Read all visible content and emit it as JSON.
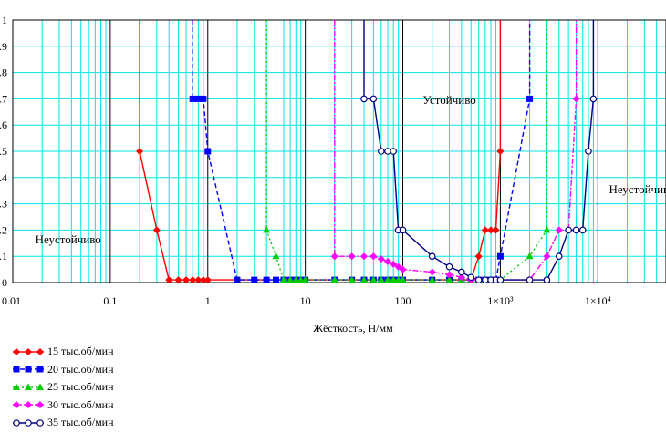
{
  "chart_data": {
    "type": "line",
    "xscale": "log",
    "xlim": [
      0.01,
      50000
    ],
    "ylim": [
      0,
      1
    ],
    "x_tick_labels": [
      "0.01",
      "0.1",
      "1",
      "10",
      "100",
      "1×10³",
      "1×10⁴"
    ],
    "y_tick_labels": [
      "0",
      ".1",
      ".2",
      ".3",
      ".4",
      ".5",
      ".6",
      ".7",
      ".8",
      ".9",
      "1"
    ],
    "xlabel": "Жёсткость, Н/мм",
    "ylabel": "",
    "annotations": [
      {
        "text": "Неустойчиво",
        "x": 0.017,
        "y": 0.15
      },
      {
        "text": "Устойчиво",
        "x": 160,
        "y": 0.68
      },
      {
        "text": "Неустойчиво",
        "x": 13000,
        "y": 0.34
      }
    ],
    "grid": true,
    "legend_position": "bottom-left",
    "series": [
      {
        "name": "15 тыс.об/мин",
        "color": "#ff0000",
        "dash": "",
        "marker": "diamond",
        "x": [
          0.2,
          0.2,
          0.3,
          0.4,
          0.5,
          0.6,
          0.7,
          0.8,
          0.9,
          1,
          2,
          3,
          4,
          5,
          6,
          7,
          8,
          9,
          10,
          20,
          30,
          40,
          50,
          60,
          70,
          80,
          90,
          100,
          200,
          300,
          400,
          500,
          600,
          700,
          800,
          900,
          1000,
          1000
        ],
        "y": [
          1,
          0.5,
          0.2,
          0.01,
          0.01,
          0.01,
          0.01,
          0.01,
          0.01,
          0.01,
          0.01,
          0.01,
          0.01,
          0.01,
          0.01,
          0.01,
          0.01,
          0.01,
          0.01,
          0.01,
          0.01,
          0.01,
          0.01,
          0.01,
          0.01,
          0.01,
          0.01,
          0.01,
          0.01,
          0.01,
          0.01,
          0.01,
          0.1,
          0.2,
          0.2,
          0.2,
          0.5,
          1
        ]
      },
      {
        "name": "20 тыс.об/мин",
        "color": "#0000ff",
        "dash": "5,3",
        "marker": "square",
        "x": [
          0.7,
          0.7,
          0.8,
          0.9,
          1,
          2,
          3,
          4,
          5,
          6,
          7,
          8,
          9,
          10,
          20,
          30,
          40,
          50,
          60,
          70,
          80,
          90,
          100,
          200,
          300,
          400,
          500,
          600,
          700,
          800,
          900,
          1000,
          2000,
          2000
        ],
        "y": [
          1,
          0.7,
          0.7,
          0.7,
          0.5,
          0.01,
          0.01,
          0.01,
          0.01,
          0.01,
          0.01,
          0.01,
          0.01,
          0.01,
          0.01,
          0.01,
          0.01,
          0.01,
          0.01,
          0.01,
          0.01,
          0.01,
          0.01,
          0.01,
          0.01,
          0.01,
          0.01,
          0.01,
          0.01,
          0.01,
          0.01,
          0.1,
          0.7,
          1
        ]
      },
      {
        "name": "25 тыс.об/мин",
        "color": "#00cc00",
        "dash": "2,3",
        "marker": "triangle",
        "x": [
          4,
          4,
          5,
          6,
          7,
          8,
          9,
          10,
          20,
          30,
          40,
          50,
          60,
          70,
          80,
          90,
          100,
          200,
          300,
          400,
          500,
          600,
          700,
          800,
          900,
          1000,
          2000,
          3000,
          3000
        ],
        "y": [
          1,
          0.2,
          0.1,
          0.01,
          0.01,
          0.01,
          0.01,
          0.01,
          0.01,
          0.01,
          0.01,
          0.01,
          0.01,
          0.01,
          0.01,
          0.01,
          0.01,
          0.01,
          0.01,
          0.01,
          0.01,
          0.01,
          0.01,
          0.01,
          0.01,
          0.01,
          0.1,
          0.2,
          1
        ]
      },
      {
        "name": "30 тыс.об/мин",
        "color": "#ff00ff",
        "dash": "6,2,2,2",
        "marker": "diamond",
        "x": [
          20,
          20,
          30,
          40,
          50,
          60,
          70,
          80,
          90,
          100,
          200,
          300,
          400,
          500,
          600,
          700,
          800,
          900,
          1000,
          2000,
          3000,
          4000,
          5000,
          6000,
          6000
        ],
        "y": [
          1,
          0.1,
          0.1,
          0.1,
          0.1,
          0.09,
          0.08,
          0.07,
          0.06,
          0.05,
          0.04,
          0.03,
          0.02,
          0.01,
          0.01,
          0.01,
          0.01,
          0.01,
          0.01,
          0.01,
          0.1,
          0.2,
          0.2,
          0.7,
          1
        ]
      },
      {
        "name": "35 тыс.об/мин",
        "color": "#000080",
        "dash": "",
        "marker": "circle",
        "x": [
          40,
          40,
          50,
          60,
          70,
          80,
          90,
          100,
          200,
          300,
          400,
          500,
          600,
          700,
          800,
          900,
          1000,
          2000,
          3000,
          4000,
          5000,
          6000,
          7000,
          8000,
          9000,
          9000
        ],
        "y": [
          1,
          0.7,
          0.7,
          0.5,
          0.5,
          0.5,
          0.2,
          0.2,
          0.1,
          0.06,
          0.04,
          0.02,
          0.01,
          0.01,
          0.01,
          0.01,
          0.01,
          0.01,
          0.01,
          0.1,
          0.2,
          0.2,
          0.2,
          0.5,
          0.7,
          1
        ]
      }
    ]
  }
}
